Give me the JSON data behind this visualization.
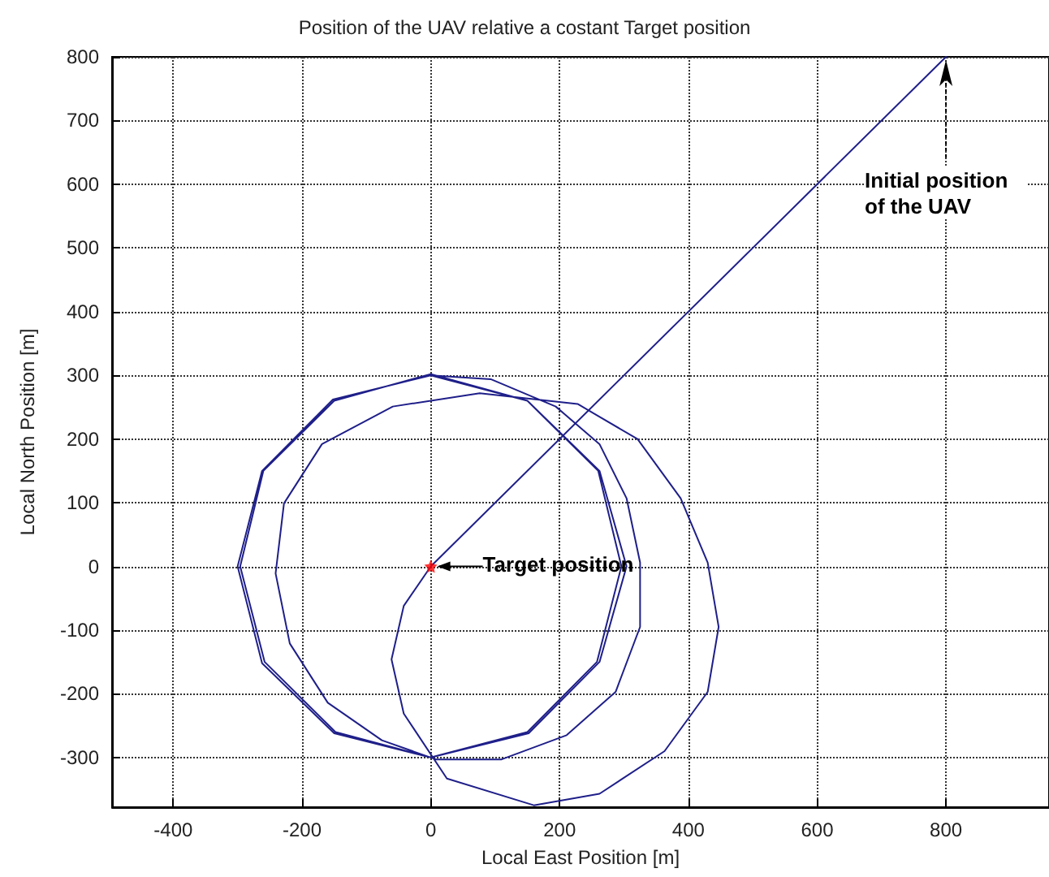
{
  "chart_data": {
    "type": "line",
    "title": "Position of the UAV relative a costant Target position",
    "xlabel": "Local East Position [m]",
    "ylabel": "Local North Position [m]",
    "xlim": [
      -495,
      960
    ],
    "ylim": [
      -378,
      800
    ],
    "xticks": [
      -400,
      -200,
      0,
      200,
      400,
      600,
      800
    ],
    "yticks": [
      -300,
      -200,
      -100,
      0,
      100,
      200,
      300,
      400,
      500,
      600,
      700,
      800
    ],
    "grid": true,
    "line_style": "solid",
    "marker": "none",
    "series": [
      {
        "color": "#1f1f8a",
        "x": [
          800,
          0,
          -42,
          -61,
          -42,
          25,
          160,
          262,
          363,
          430,
          447,
          430,
          388,
          321,
          228,
          76,
          -59,
          -169,
          -228,
          -241,
          -219,
          -160,
          -76,
          8,
          110,
          211,
          287,
          325,
          325,
          304,
          262,
          194,
          93,
          0,
          -152,
          -262,
          -300,
          -262,
          -150,
          0,
          152,
          262,
          304,
          262,
          150,
          0,
          -150,
          -260,
          -296,
          -258,
          -148,
          0,
          150,
          258,
          296,
          260,
          150,
          0
        ],
        "values": [
          800,
          0,
          -62,
          -146,
          -231,
          -333,
          -375,
          -357,
          -290,
          -197,
          -95,
          6,
          107,
          200,
          255,
          272,
          251,
          192,
          99,
          -11,
          -121,
          -214,
          -273,
          -303,
          -303,
          -265,
          -197,
          -95,
          6,
          107,
          192,
          251,
          294,
          300,
          262,
          150,
          0,
          -152,
          -262,
          -300,
          -262,
          -150,
          0,
          150,
          260,
          302,
          260,
          150,
          0,
          -150,
          -260,
          -300,
          -260,
          -150,
          0,
          150,
          260,
          300
        ]
      },
      {
        "type": "scatter",
        "color": "#ff0000",
        "marker": "star",
        "x": [
          0
        ],
        "values": [
          0
        ]
      }
    ],
    "annotations": [
      {
        "text": "Target position",
        "x": 0,
        "y": 0
      },
      {
        "text": "Initial position of the UAV",
        "x": 800,
        "y": 800
      }
    ]
  }
}
